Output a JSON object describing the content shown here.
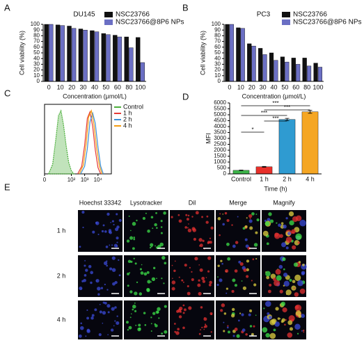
{
  "chart_data": [
    {
      "type": "bar",
      "panel": "A",
      "title": "DU145",
      "categories": [
        "0",
        "10",
        "20",
        "30",
        "40",
        "50",
        "60",
        "80",
        "100"
      ],
      "series": [
        {
          "name": "NSC23766",
          "color": "#111111",
          "values": [
            100,
            99,
            97,
            92,
            89,
            84,
            81,
            78,
            77
          ]
        },
        {
          "name": "NSC23766@8P6 NPs",
          "color": "#6b6fc4",
          "values": [
            100,
            98,
            93,
            90,
            87,
            82,
            78,
            59,
            33
          ]
        }
      ],
      "ylabel": "Cell viability (%)",
      "xlabel": "Concentration (μmol/L)",
      "ylim": [
        0,
        100
      ],
      "yticks": [
        0,
        10,
        20,
        30,
        40,
        50,
        60,
        70,
        80,
        90,
        100
      ],
      "legend": "upper right"
    },
    {
      "type": "bar",
      "panel": "B",
      "title": "PC3",
      "categories": [
        "0",
        "10",
        "20",
        "30",
        "40",
        "50",
        "60",
        "80",
        "100"
      ],
      "series": [
        {
          "name": "NSC23766",
          "color": "#111111",
          "values": [
            100,
            94,
            66,
            58,
            50,
            43,
            41,
            41,
            32
          ]
        },
        {
          "name": "NSC23766@8P6 NPs",
          "color": "#6b6fc4",
          "values": [
            100,
            93,
            62,
            47,
            37,
            34,
            30,
            27,
            25
          ]
        }
      ],
      "ylabel": "Cell viability (%)",
      "xlabel": "Concentration (μmol/L)",
      "ylim": [
        0,
        100
      ],
      "yticks": [
        0,
        10,
        20,
        30,
        40,
        50,
        60,
        70,
        80,
        90,
        100
      ],
      "legend": "upper right"
    },
    {
      "type": "line",
      "panel": "C",
      "xscale": "log1p",
      "series": [
        {
          "name": "Control",
          "color": "#4caf3c",
          "filled": true,
          "x": [
            1,
            3,
            6,
            10,
            16,
            25,
            40,
            63,
            100,
            160
          ],
          "values": [
            0,
            15,
            55,
            92,
            100,
            78,
            45,
            18,
            5,
            0
          ]
        },
        {
          "name": "1 h",
          "color": "#e53935",
          "x": [
            300,
            600,
            1000,
            1600,
            2500,
            4000,
            6300,
            10000,
            16000
          ],
          "values": [
            0,
            12,
            45,
            88,
            98,
            75,
            38,
            10,
            0
          ]
        },
        {
          "name": "2 h",
          "color": "#3a8fd6",
          "x": [
            500,
            1000,
            1600,
            2500,
            4000,
            6300,
            10000,
            16000,
            25000
          ],
          "values": [
            0,
            12,
            40,
            82,
            96,
            80,
            42,
            12,
            0
          ]
        },
        {
          "name": "4 h",
          "color": "#f39c12",
          "x": [
            400,
            800,
            1300,
            2000,
            3200,
            5000,
            8000,
            13000,
            20000
          ],
          "values": [
            0,
            14,
            48,
            90,
            100,
            78,
            40,
            12,
            0
          ]
        }
      ],
      "xlim": [
        0,
        100000
      ],
      "ylim": [
        0,
        110
      ],
      "xticks": [
        {
          "value": 0,
          "label": "0"
        },
        {
          "value": 100,
          "label": "10²"
        },
        {
          "value": 1000,
          "label": "10³"
        },
        {
          "value": 10000,
          "label": "10⁴"
        }
      ],
      "legend": "right"
    },
    {
      "type": "errorbar",
      "panel": "D",
      "categories": [
        "Control",
        "1 h",
        "2 h",
        "4 h"
      ],
      "values": [
        300,
        600,
        4600,
        5250
      ],
      "errors": [
        20,
        30,
        100,
        120
      ],
      "colors": [
        "#3db54a",
        "#e8302a",
        "#2f9bd1",
        "#f5a623"
      ],
      "ylabel": "MFI",
      "xlabel": "Time (h)",
      "ylim": [
        0,
        6000
      ],
      "yticks": [
        0,
        500,
        1000,
        1500,
        2000,
        2500,
        3000,
        3500,
        4000,
        4500,
        5000,
        5500,
        6000
      ],
      "annotations": [
        "***",
        "***",
        "***",
        "***",
        "*"
      ]
    }
  ],
  "images": {
    "panel": "E",
    "columns": [
      "Hoechst 33342",
      "Lysotracker",
      "Dil",
      "Merge",
      "Magnify"
    ],
    "rows": [
      "1 h",
      "2 h",
      "4 h"
    ]
  }
}
